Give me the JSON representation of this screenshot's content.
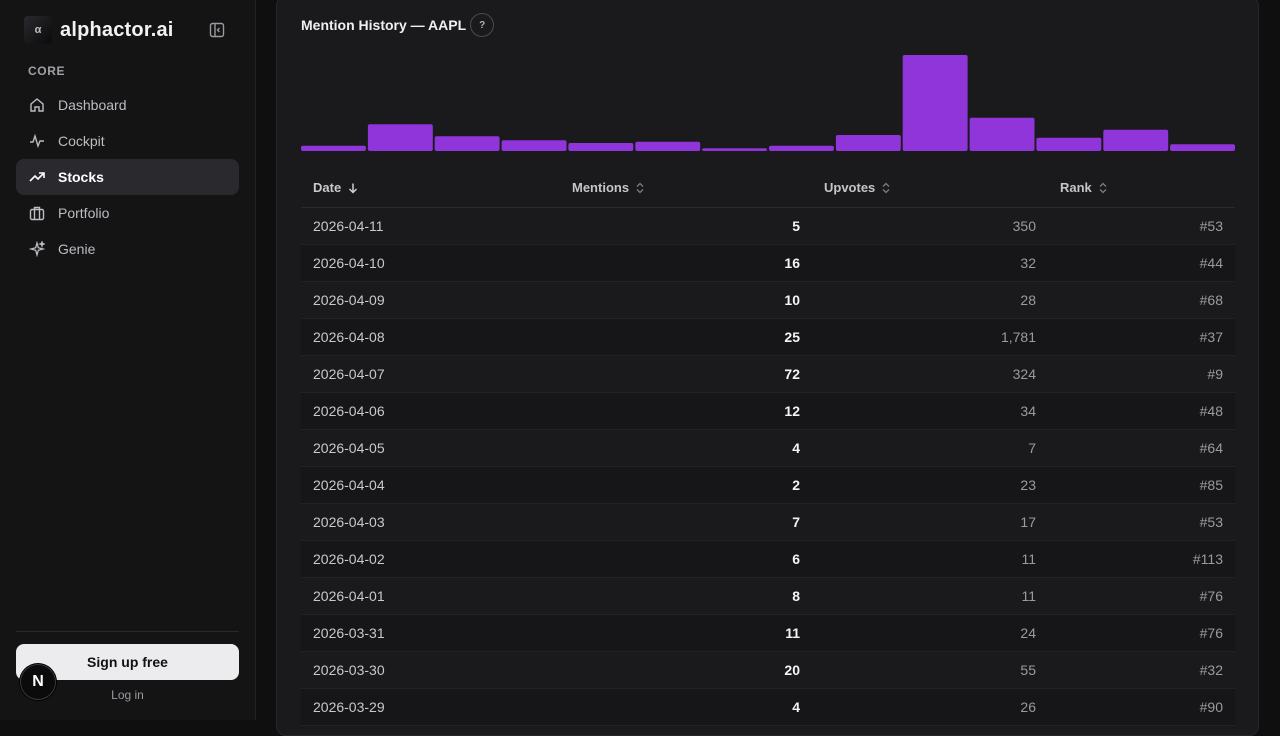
{
  "sidebar": {
    "brand": "alphactor.ai",
    "section_label": "CORE",
    "items": [
      {
        "label": "Dashboard",
        "icon": "home-icon"
      },
      {
        "label": "Cockpit",
        "icon": "activity-icon"
      },
      {
        "label": "Stocks",
        "icon": "trending-up-icon",
        "active": true
      },
      {
        "label": "Portfolio",
        "icon": "briefcase-icon"
      },
      {
        "label": "Genie",
        "icon": "sparkles-icon"
      }
    ],
    "signup_label": "Sign up free",
    "login_label": "Log in",
    "badge_letter": "N"
  },
  "card": {
    "title": "Mention History — AAPL",
    "help_label": "?"
  },
  "chart_data": {
    "type": "bar",
    "categories": [
      "2026-03-29",
      "2026-03-30",
      "2026-03-31",
      "2026-04-01",
      "2026-04-02",
      "2026-04-03",
      "2026-04-04",
      "2026-04-05",
      "2026-04-06",
      "2026-04-07",
      "2026-04-08",
      "2026-04-09",
      "2026-04-10",
      "2026-04-11"
    ],
    "values": [
      4,
      20,
      11,
      8,
      6,
      7,
      2,
      4,
      12,
      72,
      25,
      10,
      16,
      5
    ],
    "color": "#9035d9"
  },
  "table": {
    "headers": {
      "date": "Date",
      "mentions": "Mentions",
      "upvotes": "Upvotes",
      "rank": "Rank"
    },
    "rows": [
      {
        "date": "2026-04-11",
        "mentions": "5",
        "upvotes": "350",
        "rank": "#53"
      },
      {
        "date": "2026-04-10",
        "mentions": "16",
        "upvotes": "32",
        "rank": "#44"
      },
      {
        "date": "2026-04-09",
        "mentions": "10",
        "upvotes": "28",
        "rank": "#68"
      },
      {
        "date": "2026-04-08",
        "mentions": "25",
        "upvotes": "1,781",
        "rank": "#37"
      },
      {
        "date": "2026-04-07",
        "mentions": "72",
        "upvotes": "324",
        "rank": "#9"
      },
      {
        "date": "2026-04-06",
        "mentions": "12",
        "upvotes": "34",
        "rank": "#48"
      },
      {
        "date": "2026-04-05",
        "mentions": "4",
        "upvotes": "7",
        "rank": "#64"
      },
      {
        "date": "2026-04-04",
        "mentions": "2",
        "upvotes": "23",
        "rank": "#85"
      },
      {
        "date": "2026-04-03",
        "mentions": "7",
        "upvotes": "17",
        "rank": "#53"
      },
      {
        "date": "2026-04-02",
        "mentions": "6",
        "upvotes": "11",
        "rank": "#113"
      },
      {
        "date": "2026-04-01",
        "mentions": "8",
        "upvotes": "11",
        "rank": "#76"
      },
      {
        "date": "2026-03-31",
        "mentions": "11",
        "upvotes": "24",
        "rank": "#76"
      },
      {
        "date": "2026-03-30",
        "mentions": "20",
        "upvotes": "55",
        "rank": "#32"
      },
      {
        "date": "2026-03-29",
        "mentions": "4",
        "upvotes": "26",
        "rank": "#90"
      }
    ]
  }
}
